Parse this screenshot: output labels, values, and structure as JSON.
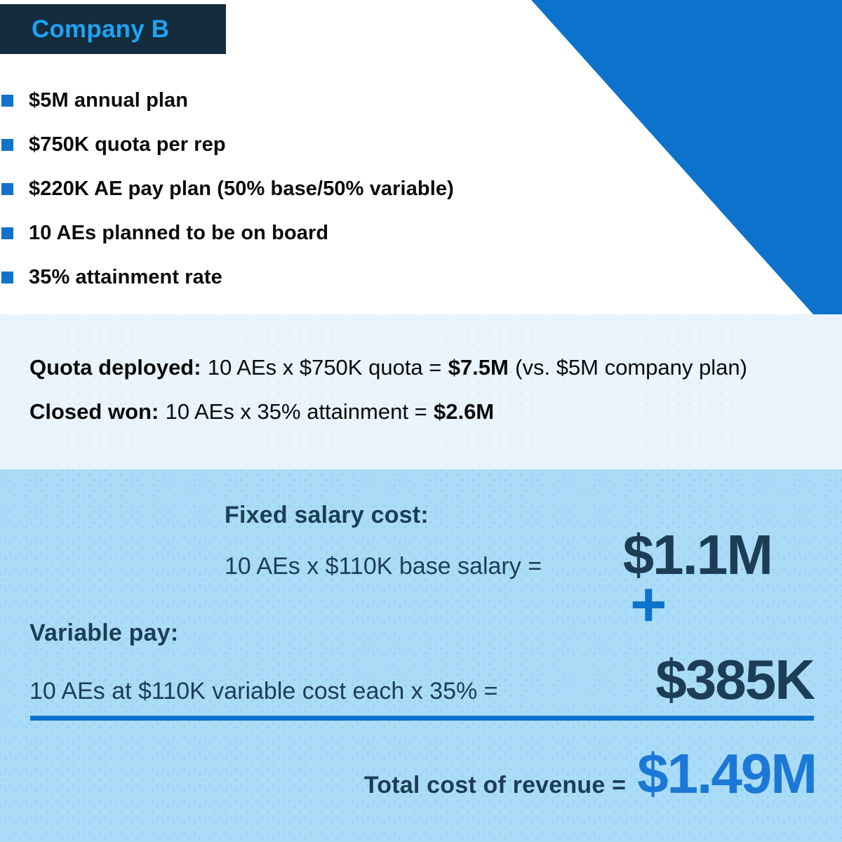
{
  "colors": {
    "accent_blue": "#0D72CC",
    "header_bg": "#132C3E",
    "header_text_blue": "#1FA3F3",
    "summary_bg": "#E9F4FC",
    "costs_bg": "#AADCF7",
    "navy_text": "#1C3D55",
    "total_value_blue": "#1B78D6",
    "body_text": "#0A0A0A"
  },
  "header": {
    "title": "Company B"
  },
  "bullets": [
    "$5M annual plan",
    "$750K quota per rep",
    "$220K AE pay plan (50% base/50% variable)",
    "10 AEs planned to be on board",
    "35% attainment rate"
  ],
  "summary": {
    "quota": {
      "label": "Quota deployed:",
      "formula": "10 AEs x $750K quota =",
      "value": "$7.5M",
      "note": "(vs. $5M company plan)"
    },
    "closed": {
      "label": "Closed won:",
      "formula": "10 AEs x 35% attainment =",
      "value": "$2.6M"
    }
  },
  "costs": {
    "fixed": {
      "label": "Fixed salary cost:",
      "formula": "10 AEs x $110K base salary =",
      "value": "$1.1M"
    },
    "plus": "+",
    "variable": {
      "label": "Variable pay:",
      "formula": "10 AEs at $110K variable cost each x 35% =",
      "value": "$385K"
    },
    "total": {
      "label": "Total cost of revenue =",
      "value": "$1.49M"
    }
  }
}
